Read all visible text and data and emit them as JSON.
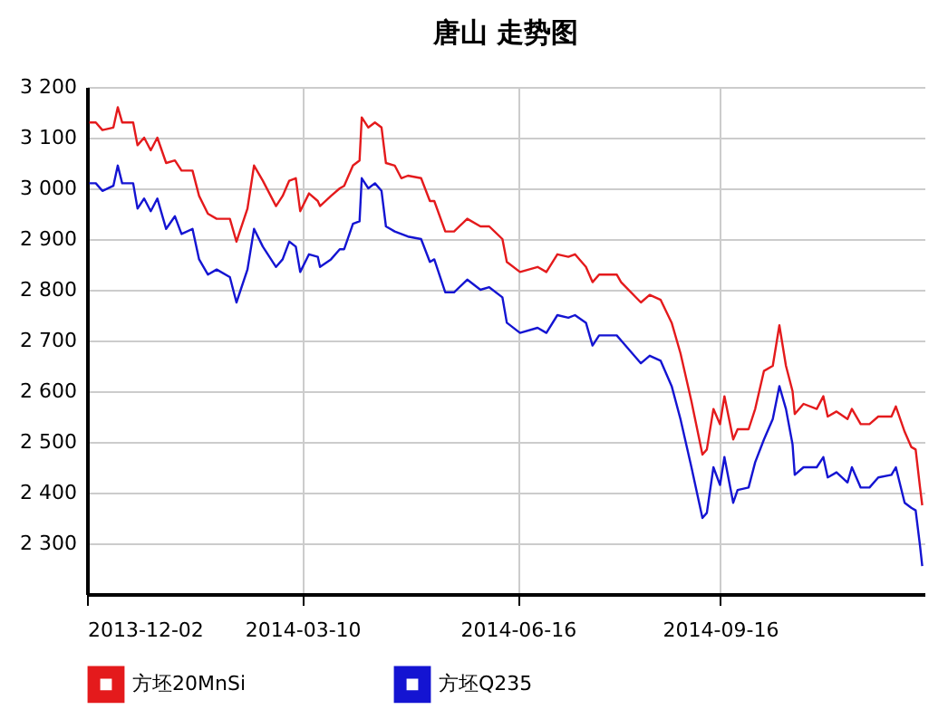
{
  "chart_data": {
    "type": "line",
    "title": "唐山 走势图",
    "x": [
      "2013-12-03",
      "2013-12-06",
      "2013-12-09",
      "2013-12-14",
      "2013-12-16",
      "2013-12-18",
      "2013-12-23",
      "2013-12-25",
      "2013-12-28",
      "2013-12-31",
      "2014-01-03",
      "2014-01-07",
      "2014-01-11",
      "2014-01-14",
      "2014-01-19",
      "2014-01-22",
      "2014-01-26",
      "2014-01-30",
      "2014-02-05",
      "2014-02-08",
      "2014-02-13",
      "2014-02-16",
      "2014-02-20",
      "2014-02-26",
      "2014-03-01",
      "2014-03-04",
      "2014-03-07",
      "2014-03-09",
      "2014-03-13",
      "2014-03-17",
      "2014-03-18",
      "2014-03-23",
      "2014-03-27",
      "2014-03-29",
      "2014-04-02",
      "2014-04-05",
      "2014-04-06",
      "2014-04-09",
      "2014-04-12",
      "2014-04-15",
      "2014-04-17",
      "2014-04-21",
      "2014-04-24",
      "2014-04-27",
      "2014-05-03",
      "2014-05-07",
      "2014-05-09",
      "2014-05-14",
      "2014-05-18",
      "2014-05-24",
      "2014-05-30",
      "2014-06-03",
      "2014-06-09",
      "2014-06-11",
      "2014-06-17",
      "2014-06-25",
      "2014-06-29",
      "2014-07-04",
      "2014-07-09",
      "2014-07-12",
      "2014-07-17",
      "2014-07-20",
      "2014-07-23",
      "2014-07-31",
      "2014-08-02",
      "2014-08-11",
      "2014-08-15",
      "2014-08-20",
      "2014-08-25",
      "2014-08-29",
      "2014-09-03",
      "2014-09-08",
      "2014-09-10",
      "2014-09-13",
      "2014-09-16",
      "2014-09-18",
      "2014-09-22",
      "2014-09-24",
      "2014-09-29",
      "2014-10-02",
      "2014-10-06",
      "2014-10-10",
      "2014-10-13",
      "2014-10-16",
      "2014-10-19",
      "2014-10-20",
      "2014-10-24",
      "2014-10-30",
      "2014-11-02",
      "2014-11-04",
      "2014-11-08",
      "2014-11-13",
      "2014-11-15",
      "2014-11-19",
      "2014-11-23",
      "2014-11-27",
      "2014-12-03",
      "2014-12-05",
      "2014-12-09",
      "2014-12-12",
      "2014-12-14",
      "2014-12-16",
      "2014-12-17"
    ],
    "series": [
      {
        "name": "方坯20MnSi",
        "color": "#e41a1c",
        "values": [
          3130,
          3130,
          3115,
          3120,
          3160,
          3130,
          3130,
          3085,
          3100,
          3075,
          3100,
          3050,
          3055,
          3035,
          3035,
          2985,
          2950,
          2940,
          2940,
          2895,
          2960,
          3045,
          3015,
          2965,
          2985,
          3015,
          3020,
          2955,
          2990,
          2975,
          2965,
          2985,
          3000,
          3005,
          3045,
          3055,
          3140,
          3120,
          3130,
          3120,
          3050,
          3045,
          3020,
          3025,
          3020,
          2975,
          2975,
          2915,
          2915,
          2940,
          2925,
          2925,
          2900,
          2855,
          2835,
          2845,
          2835,
          2870,
          2865,
          2870,
          2845,
          2815,
          2830,
          2830,
          2815,
          2775,
          2790,
          2780,
          2735,
          2675,
          2580,
          2475,
          2485,
          2565,
          2535,
          2590,
          2505,
          2525,
          2525,
          2565,
          2640,
          2650,
          2730,
          2650,
          2600,
          2555,
          2575,
          2565,
          2590,
          2550,
          2560,
          2545,
          2565,
          2535,
          2535,
          2550,
          2550,
          2570,
          2520,
          2490,
          2485,
          2410,
          2375
        ]
      },
      {
        "name": "方坯Q235",
        "color": "#1414d2",
        "values": [
          3010,
          3010,
          2995,
          3005,
          3045,
          3010,
          3010,
          2960,
          2980,
          2955,
          2980,
          2920,
          2945,
          2910,
          2920,
          2860,
          2830,
          2840,
          2825,
          2775,
          2840,
          2920,
          2885,
          2845,
          2860,
          2895,
          2885,
          2835,
          2870,
          2865,
          2845,
          2860,
          2880,
          2880,
          2930,
          2935,
          3020,
          3000,
          3010,
          2995,
          2925,
          2915,
          2910,
          2905,
          2900,
          2855,
          2860,
          2795,
          2795,
          2820,
          2800,
          2805,
          2785,
          2735,
          2715,
          2725,
          2715,
          2750,
          2745,
          2750,
          2735,
          2690,
          2710,
          2710,
          2700,
          2655,
          2670,
          2660,
          2610,
          2545,
          2450,
          2350,
          2360,
          2450,
          2415,
          2470,
          2380,
          2405,
          2410,
          2460,
          2505,
          2545,
          2610,
          2565,
          2495,
          2435,
          2450,
          2450,
          2470,
          2430,
          2440,
          2420,
          2450,
          2410,
          2410,
          2430,
          2435,
          2450,
          2380,
          2370,
          2365,
          2295,
          2255
        ]
      }
    ],
    "xlim": [
      "2013-12-02",
      "2014-12-18"
    ],
    "xticks": [
      "2013-12-02",
      "2014-03-10",
      "2014-06-16",
      "2014-09-16"
    ],
    "ylim": [
      2200,
      3200
    ],
    "yticks": [
      {
        "value": 2300,
        "label": "2 300"
      },
      {
        "value": 2400,
        "label": "2 400"
      },
      {
        "value": 2500,
        "label": "2 500"
      },
      {
        "value": 2600,
        "label": "2 600"
      },
      {
        "value": 2700,
        "label": "2 700"
      },
      {
        "value": 2800,
        "label": "2 800"
      },
      {
        "value": 2900,
        "label": "2 900"
      },
      {
        "value": 3000,
        "label": "3 000"
      },
      {
        "value": 3100,
        "label": "3 100"
      },
      {
        "value": 3200,
        "label": "3 200"
      }
    ],
    "grid": true,
    "legend": "bottom left",
    "marker": "none",
    "line_style": "solid"
  }
}
